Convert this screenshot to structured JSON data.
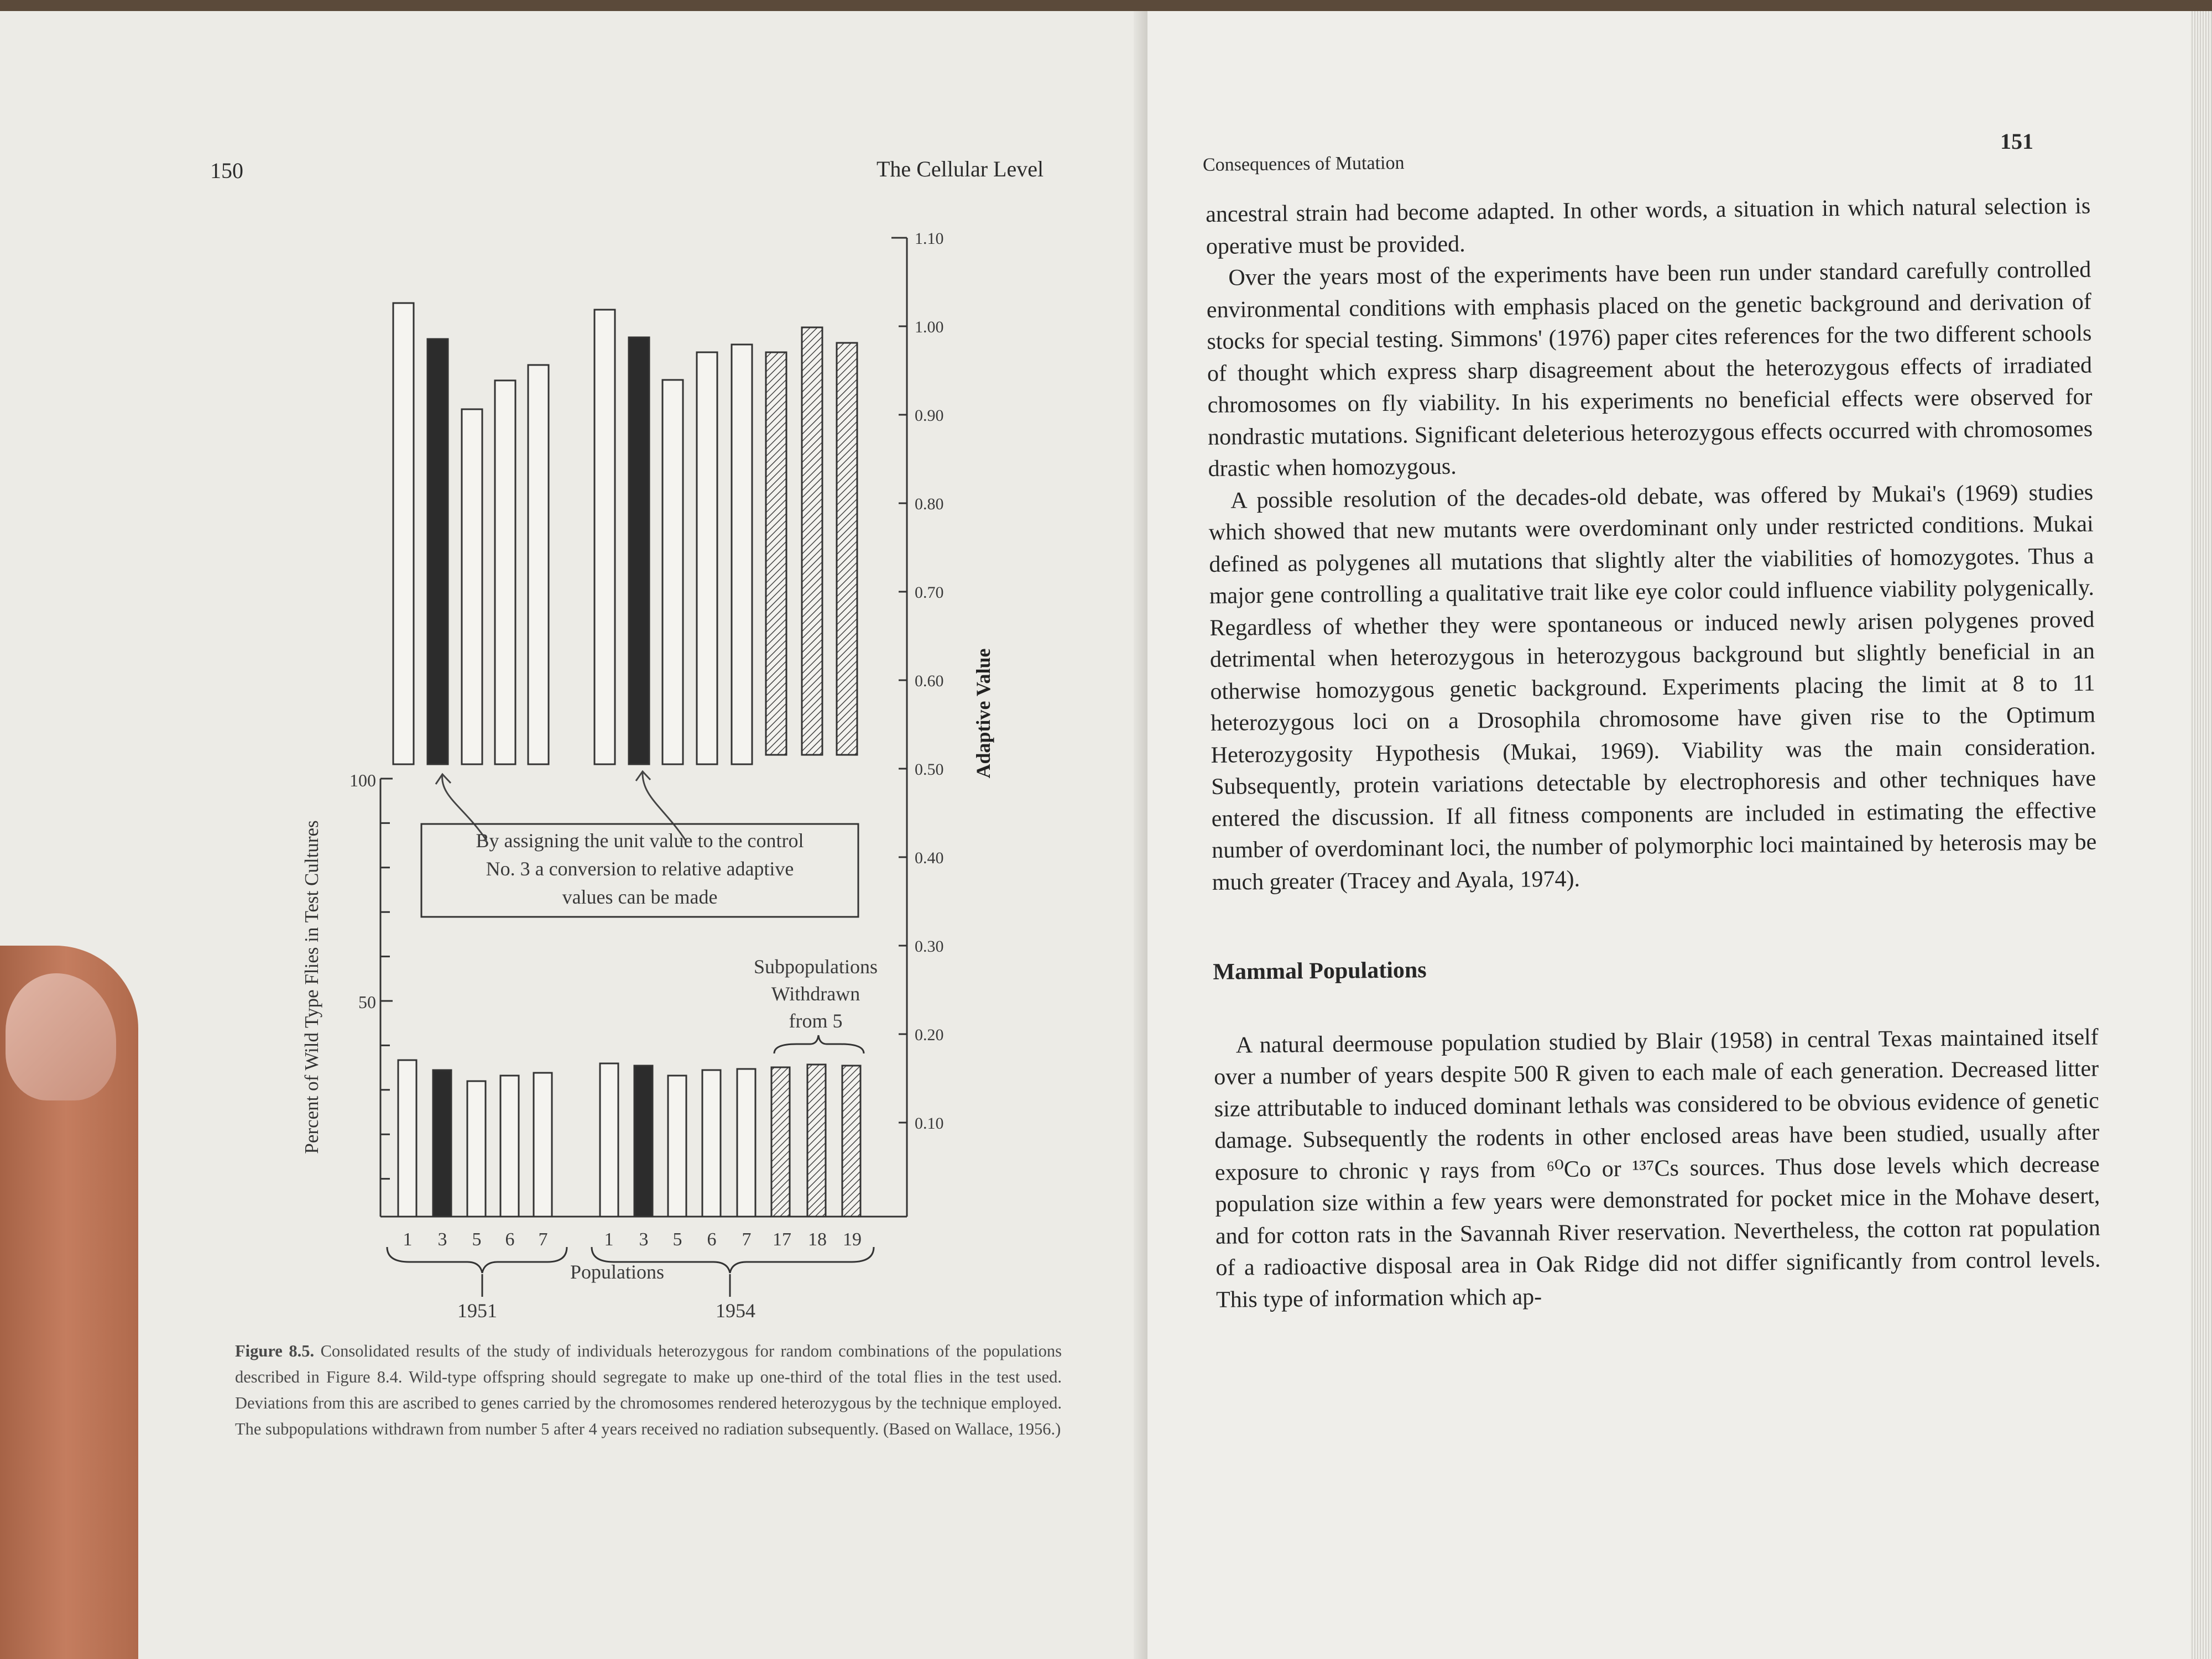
{
  "left_page": {
    "page_number": "150",
    "running_head": "The Cellular Level",
    "figure": {
      "left_axis_label": "Percent of Wild Type Flies in Test Cultures",
      "right_axis_label": "Adaptive Value",
      "x_label": "Populations",
      "group_labels": [
        "1951",
        "1954"
      ],
      "left_ticks": [
        "100",
        "50"
      ],
      "right_ticks": [
        "1.10",
        "1.00",
        "0.90",
        "0.80",
        "0.70",
        "0.60",
        "0.50",
        "0.40",
        "0.30",
        "0.20",
        "0.10"
      ],
      "callout_text": [
        "By assigning the unit value to the control",
        "No. 3 a conversion to relative adaptive",
        "values can be made"
      ],
      "subpop_label": [
        "Subpopulations",
        "Withdrawn",
        "from 5"
      ],
      "x_ticks_1951": [
        "1",
        "3",
        "5",
        "6",
        "7"
      ],
      "x_ticks_1954": [
        "1",
        "3",
        "5",
        "6",
        "7",
        "17",
        "18",
        "19"
      ]
    },
    "caption": {
      "label": "Figure 8.5.",
      "text": "Consolidated results of the study of individuals heterozygous for random combinations of the populations described in Figure 8.4. Wild-type offspring should segregate to make up one-third of the total flies in the test used. Deviations from this are ascribed to genes carried by the chromosomes rendered heterozygous by the technique employed. The subpopulations withdrawn from number 5 after 4 years received no radiation subsequently. (Based on Wallace, 1956.)"
    }
  },
  "right_page": {
    "page_number": "151",
    "running_head": "Consequences of Mutation",
    "paragraphs": [
      "ancestral strain had become adapted. In other words, a situation in which natural selection is operative must be provided.",
      "Over the years most of the experiments have been run under standard carefully controlled environmental conditions with emphasis placed on the genetic background and derivation of stocks for special testing. Simmons' (1976) paper cites references for the two different schools of thought which express sharp disagreement about the heterozygous effects of irradiated chromosomes on fly viability. In his experiments no beneficial effects were observed for nondrastic mutations. Significant deleterious heterozygous effects occurred with chromosomes drastic when homozygous.",
      "A possible resolution of the decades-old debate, was offered by Mukai's (1969) studies which showed that new mutants were overdominant only under restricted conditions. Mukai defined as polygenes all mutations that slightly alter the viabilities of homozygotes. Thus a major gene controlling a qualitative trait like eye color could influence viability polygenically. Regardless of whether they were spontaneous or induced newly arisen polygenes proved detrimental when heterozygous in heterozygous background but slightly beneficial in an otherwise homozygous genetic background. Experiments placing the limit at 8 to 11 heterozygous loci on a Drosophila chromosome have given rise to the Optimum Heterozygosity Hypothesis (Mukai, 1969). Viability was the main consideration. Subsequently, protein variations detectable by electrophoresis and other techniques have entered the discussion. If all fitness components are included in estimating the effective number of overdominant loci, the number of polymorphic loci maintained by heterosis may be much greater (Tracey and Ayala, 1974)."
    ],
    "section_heading": "Mammal Populations",
    "section_paragraph": "A natural deermouse population studied by Blair (1958) in central Texas maintained itself over a number of years despite 500 R given to each male of each generation. Decreased litter size attributable to induced dominant lethals was considered to be obvious evidence of genetic damage. Subsequently the rodents in other enclosed areas have been studied, usually after exposure to chronic γ rays from ⁶⁰Co or ¹³⁷Cs sources. Thus dose levels which decrease population size within a few years were demonstrated for pocket mice in the Mohave desert, and for cotton rats in the Savannah River reservation. Nevertheless, the cotton rat population of a radioactive disposal area in Oak Ridge did not differ significantly from control levels. This type of information which ap-"
  }
}
